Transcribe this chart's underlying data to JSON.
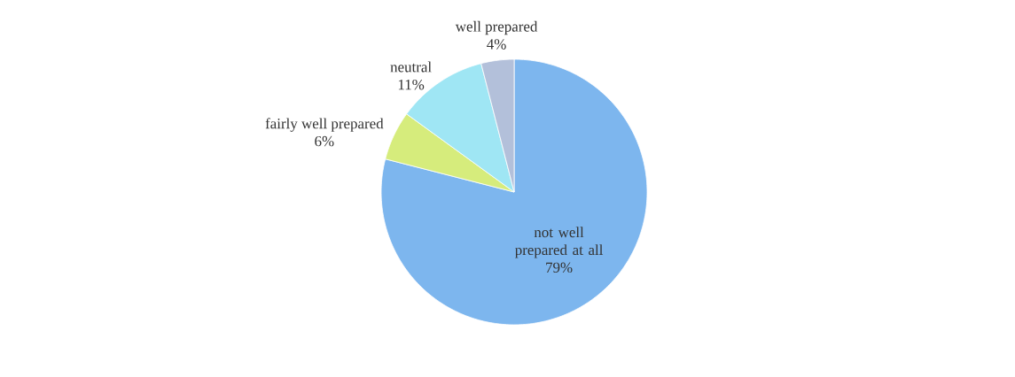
{
  "chart_data": {
    "type": "pie",
    "categories": [
      "not well prepared at all",
      "fairly well prepared",
      "neutral",
      "well prepared"
    ],
    "values": [
      79,
      6,
      11,
      4
    ],
    "colors": [
      "#7db6ee",
      "#d6ec7c",
      "#9fe6f4",
      "#b3c0da"
    ],
    "value_labels": [
      "79%",
      "6%",
      "11%",
      "4%"
    ]
  }
}
